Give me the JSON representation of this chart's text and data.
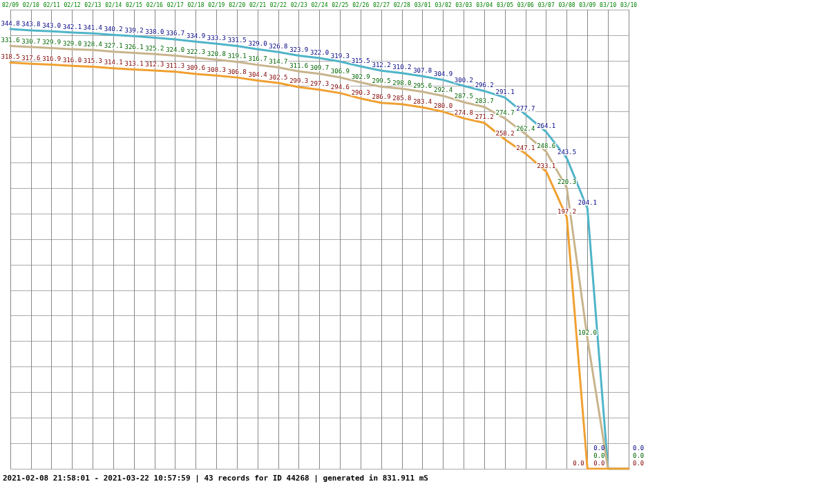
{
  "chart_data": {
    "type": "line",
    "categories": [
      "02/09",
      "02/10",
      "02/11",
      "02/12",
      "02/13",
      "02/14",
      "02/15",
      "02/16",
      "02/17",
      "02/18",
      "02/19",
      "02/20",
      "02/21",
      "02/22",
      "02/23",
      "02/24",
      "02/25",
      "02/26",
      "02/27",
      "02/28",
      "03/01",
      "03/02",
      "03/03",
      "03/04",
      "03/05",
      "03/06",
      "03/07",
      "03/08",
      "03/09",
      "03/10",
      "03/10"
    ],
    "series": [
      {
        "color": "#4fb4c8",
        "values": [
          344.8,
          343.8,
          343.0,
          342.1,
          341.4,
          340.2,
          339.2,
          338.0,
          336.7,
          334.9,
          333.3,
          331.5,
          329.0,
          326.8,
          323.9,
          322.0,
          319.3,
          315.5,
          312.2,
          310.2,
          307.8,
          304.9,
          300.2,
          296.2,
          291.1,
          277.7,
          264.1,
          243.5,
          204.1,
          0.0,
          0.0
        ],
        "value_labels": [
          "344.8",
          "343.8",
          "343.0",
          "342.1",
          "341.4",
          "340.2",
          "339.2",
          "338.0",
          "336.7",
          "334.9",
          "333.3",
          "331.5",
          "329.0",
          "326.8",
          "323.9",
          "322.0",
          "319.3",
          "315.5",
          "312.2",
          "310.2",
          "307.8",
          "304.9",
          "300.2",
          "296.2",
          "291.1",
          "277.7",
          "264.1",
          "243.5",
          "204.1",
          "0.0",
          "0.0"
        ]
      },
      {
        "color": "#c8b48c",
        "values": [
          331.6,
          330.7,
          329.9,
          329.0,
          328.4,
          327.1,
          326.1,
          325.2,
          324.0,
          322.3,
          320.8,
          319.1,
          316.7,
          314.7,
          311.6,
          309.7,
          306.9,
          302.9,
          299.5,
          298.0,
          295.6,
          292.4,
          287.5,
          283.7,
          274.7,
          262.4,
          248.6,
          220.3,
          102.0,
          0.0,
          0.0
        ],
        "value_labels": [
          "331.6",
          "330.7",
          "329.9",
          "329.0",
          "328.4",
          "327.1",
          "326.1",
          "325.2",
          "324.0",
          "322.3",
          "320.8",
          "319.1",
          "316.7",
          "314.7",
          "311.6",
          "309.7",
          "306.9",
          "302.9",
          "299.5",
          "298.0",
          "295.6",
          "292.4",
          "287.5",
          "283.7",
          "274.7",
          "262.4",
          "248.6",
          "220.3",
          "102.0",
          "0.0",
          "0.0"
        ]
      },
      {
        "color": "#f0a030",
        "values": [
          318.5,
          317.6,
          316.9,
          316.0,
          315.3,
          314.1,
          313.1,
          312.3,
          311.3,
          309.6,
          308.3,
          306.8,
          304.4,
          302.5,
          299.3,
          297.3,
          294.6,
          290.3,
          286.9,
          285.8,
          283.4,
          280.0,
          274.8,
          271.2,
          258.2,
          247.1,
          233.1,
          197.2,
          0.0,
          0.0,
          0.0
        ],
        "value_labels": [
          "318.5",
          "317.6",
          "316.9",
          "316.0",
          "315.3",
          "314.1",
          "313.1",
          "312.3",
          "311.3",
          "309.6",
          "308.3",
          "306.8",
          "304.4",
          "302.5",
          "299.3",
          "297.3",
          "294.6",
          "290.3",
          "286.9",
          "285.8",
          "283.4",
          "280.0",
          "274.8",
          "271.2",
          "258.2",
          "247.1",
          "233.1",
          "197.2",
          "0.0",
          "0.0",
          "0.0"
        ]
      }
    ],
    "grid": true,
    "tick_labels": "x",
    "marker": "none",
    "line_style": "solid",
    "annotations": [
      "2021-02-08 21:58:01 - 2021-03-22 10:57:59 | 43 records for ID 44268 | generated in 831.911 mS"
    ]
  }
}
